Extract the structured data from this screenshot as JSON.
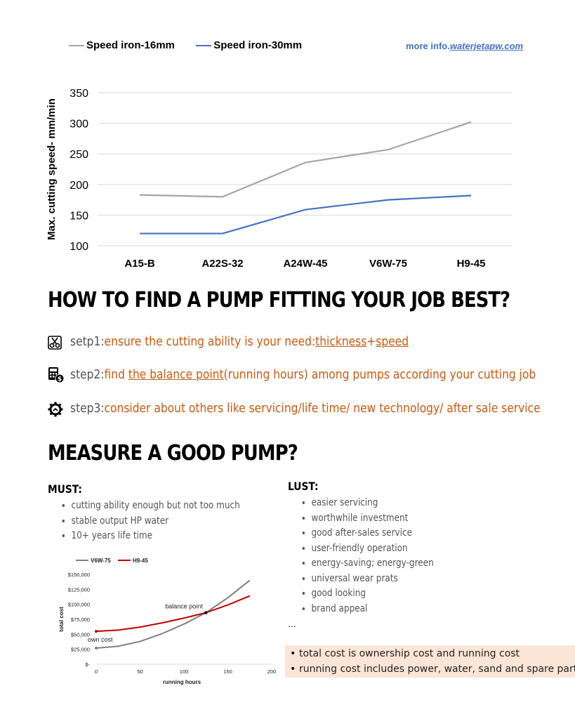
{
  "header": {
    "legend": [
      {
        "label": "Speed iron-16mm",
        "color": "#a5a5a5"
      },
      {
        "label": "Speed iron-30mm",
        "color": "#4472c4"
      }
    ],
    "more_info_prefix": "more info.",
    "more_info_link": "waterjetapw.com"
  },
  "chart_data": [
    {
      "type": "line",
      "categories": [
        "A15-B",
        "A22S-32",
        "A24W-45",
        "V6W-75",
        "H9-45"
      ],
      "series": [
        {
          "name": "Speed iron-16mm",
          "color": "#a5a5a5",
          "values": [
            183,
            180,
            236,
            257,
            302
          ]
        },
        {
          "name": "Speed iron-30mm",
          "color": "#4472c4",
          "values": [
            120,
            120,
            159,
            175,
            182
          ]
        }
      ],
      "ylabel": "Max. cutting speed- mm/min",
      "ylim": [
        100,
        350
      ],
      "yticks": [
        "100",
        "150",
        "200",
        "250",
        "300",
        "350"
      ],
      "grid": true,
      "legend": "top-left"
    },
    {
      "type": "line",
      "series": [
        {
          "name": "V6W-75",
          "color": "#7f7f7f",
          "x": [
            0,
            25,
            50,
            75,
            100,
            125,
            150,
            175
          ],
          "y": [
            27000,
            30000,
            38000,
            51000,
            67000,
            86000,
            111000,
            140000
          ]
        },
        {
          "name": "H9-45",
          "color": "#c00000",
          "x": [
            0,
            25,
            50,
            75,
            100,
            125,
            150,
            175
          ],
          "y": [
            55000,
            57000,
            62000,
            69000,
            77000,
            86000,
            99000,
            114000
          ]
        }
      ],
      "xlabel": "running hours",
      "ylabel": "total cost",
      "xlim": [
        0,
        200
      ],
      "ylim": [
        0,
        150000
      ],
      "xticks": [
        "0",
        "50",
        "100",
        "150",
        "200"
      ],
      "yticks": [
        "$-",
        "$25,000",
        "$50,000",
        "$75,000",
        "$100,000",
        "$125,000",
        "$150,000"
      ],
      "annotations": [
        "balance point",
        "own cost"
      ],
      "legend": "top-left"
    }
  ],
  "section1": {
    "title": "HOW TO FIND A PUMP FITTING YOUR JOB BEST?",
    "steps": [
      {
        "icon": "scissors-icon",
        "prefix": "setp1:",
        "parts": [
          "ensure the cutting ability is your need:",
          "thickness",
          "+",
          "speed"
        ]
      },
      {
        "icon": "calculator-dollar-icon",
        "prefix": "step2:",
        "parts": [
          "find ",
          "the balance point",
          "(running hours) among pumps according your cutting job"
        ]
      },
      {
        "icon": "gear-icon",
        "prefix": "step3:",
        "parts": [
          "consider about others like servicing/life time/ new technology/ after sale service"
        ]
      }
    ]
  },
  "section2": {
    "title": "MEASURE A GOOD PUMP?",
    "must_title": "MUST:",
    "must_items": [
      "cutting ability enough but not too much",
      "stable output HP water",
      "10+ years life time"
    ],
    "lust_title": "LUST:",
    "lust_items": [
      "easier servicing",
      "worthwhile investment",
      "good after-sales service",
      "user-friendly operation",
      "energy-saving; energy-green",
      "universal wear prats",
      "good looking",
      "brand appeal"
    ],
    "ellipsis": "...",
    "notes": [
      "total cost is ownership cost and running cost",
      "running cost includes power, water, sand and spare parts"
    ]
  }
}
